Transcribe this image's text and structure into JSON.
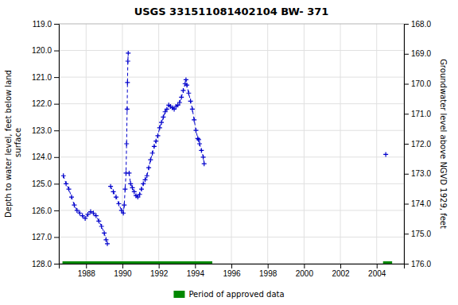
{
  "chart_data": {
    "type": "line",
    "title": "USGS 331511081402104 BW- 371",
    "y_label": "Depth to water level, feet below land\n surface",
    "y2_label": "Groundwater level above NGVD 1929, feet",
    "xlim": [
      1986.5,
      2005.5
    ],
    "xticks": [
      1988,
      1990,
      1992,
      1994,
      1996,
      1998,
      2000,
      2002,
      2004
    ],
    "ylim": [
      128.0,
      119.0
    ],
    "yticks": [
      {
        "value": 119.0,
        "label": "119.0"
      },
      {
        "value": 120.0,
        "label": "120.0"
      },
      {
        "value": 121.0,
        "label": "121.0"
      },
      {
        "value": 122.0,
        "label": "122.0"
      },
      {
        "value": 123.0,
        "label": "123.0"
      },
      {
        "value": 124.0,
        "label": "124.0"
      },
      {
        "value": 125.0,
        "label": "125.0"
      },
      {
        "value": 126.0,
        "label": "126.0"
      },
      {
        "value": 127.0,
        "label": "127.0"
      },
      {
        "value": 128.0,
        "label": "128.0"
      }
    ],
    "y2lim": [
      176.0,
      168.0
    ],
    "y2ticks": [
      {
        "value": 176.0,
        "label": "176.0"
      },
      {
        "value": 175.0,
        "label": "175.0"
      },
      {
        "value": 174.0,
        "label": "174.0"
      },
      {
        "value": 173.0,
        "label": "173.0"
      },
      {
        "value": 172.0,
        "label": "172.0"
      },
      {
        "value": 171.0,
        "label": "171.0"
      },
      {
        "value": 170.0,
        "label": "170.0"
      },
      {
        "value": 169.0,
        "label": "169.0"
      },
      {
        "value": 168.0,
        "label": "168.0"
      }
    ],
    "grid": true,
    "legend": "bottom",
    "series": [
      {
        "color": "#0000cc",
        "line_style": "dashed",
        "marker": "plus",
        "x": [
          1986.75,
          1986.9,
          1987.05,
          1987.2,
          1987.35,
          1987.5,
          1987.65,
          1987.8,
          1987.95,
          1988.1,
          1988.25,
          1988.4,
          1988.55,
          1988.7,
          1988.85,
          1989.0,
          1989.1,
          1989.17
        ],
        "values": [
          124.7,
          125.0,
          125.2,
          125.5,
          125.8,
          126.0,
          126.1,
          126.2,
          126.3,
          126.15,
          126.05,
          126.1,
          126.2,
          126.4,
          126.6,
          126.85,
          127.1,
          127.25
        ]
      },
      {
        "color": "#0000cc",
        "line_style": "dashed",
        "marker": "plus",
        "x": [
          1989.35,
          1989.5,
          1989.65,
          1989.8,
          1989.95,
          1990.05,
          1990.1,
          1990.15,
          1990.2,
          1990.23,
          1990.26,
          1990.28,
          1990.3,
          1990.32
        ],
        "values": [
          125.1,
          125.3,
          125.5,
          125.75,
          126.0,
          126.1,
          125.8,
          125.2,
          124.6,
          123.5,
          122.2,
          121.2,
          120.4,
          120.1
        ]
      },
      {
        "color": "#0000cc",
        "line_style": "dashed",
        "marker": "plus",
        "x": [
          1990.37,
          1990.45,
          1990.55,
          1990.65,
          1990.75,
          1990.85,
          1990.95,
          1991.05,
          1991.15,
          1991.25,
          1991.35,
          1991.45,
          1991.55,
          1991.65,
          1991.75,
          1991.85,
          1991.95,
          1992.05,
          1992.15,
          1992.25,
          1992.35,
          1992.45,
          1992.55,
          1992.65,
          1992.75,
          1992.85,
          1992.95,
          1993.05,
          1993.15,
          1993.25,
          1993.35,
          1993.45,
          1993.5,
          1993.55,
          1993.65,
          1993.75,
          1993.85,
          1993.95,
          1994.05,
          1994.15,
          1994.2,
          1994.25,
          1994.35,
          1994.45,
          1994.5
        ],
        "values": [
          124.6,
          125.0,
          125.15,
          125.3,
          125.45,
          125.5,
          125.4,
          125.2,
          125.0,
          124.85,
          124.7,
          124.4,
          124.1,
          123.85,
          123.6,
          123.4,
          123.2,
          122.9,
          122.7,
          122.5,
          122.3,
          122.2,
          122.05,
          122.1,
          122.15,
          122.2,
          122.1,
          122.05,
          121.95,
          121.75,
          121.5,
          121.25,
          121.1,
          121.3,
          121.6,
          121.9,
          122.2,
          122.6,
          123.0,
          123.3,
          123.35,
          123.5,
          123.75,
          124.0,
          124.25
        ]
      },
      {
        "color": "#0000cc",
        "line_style": "dashed",
        "marker": "plus",
        "x": [
          2004.5
        ],
        "values": [
          123.9
        ]
      },
      {
        "name": "Period of approved data",
        "type": "bar",
        "orientation": "horizontal",
        "color": "#008800",
        "x": [
          1986.7,
          2004.35
        ],
        "x_end": [
          1994.95,
          2004.85
        ],
        "values": [
          128.0,
          128.0
        ]
      }
    ]
  }
}
